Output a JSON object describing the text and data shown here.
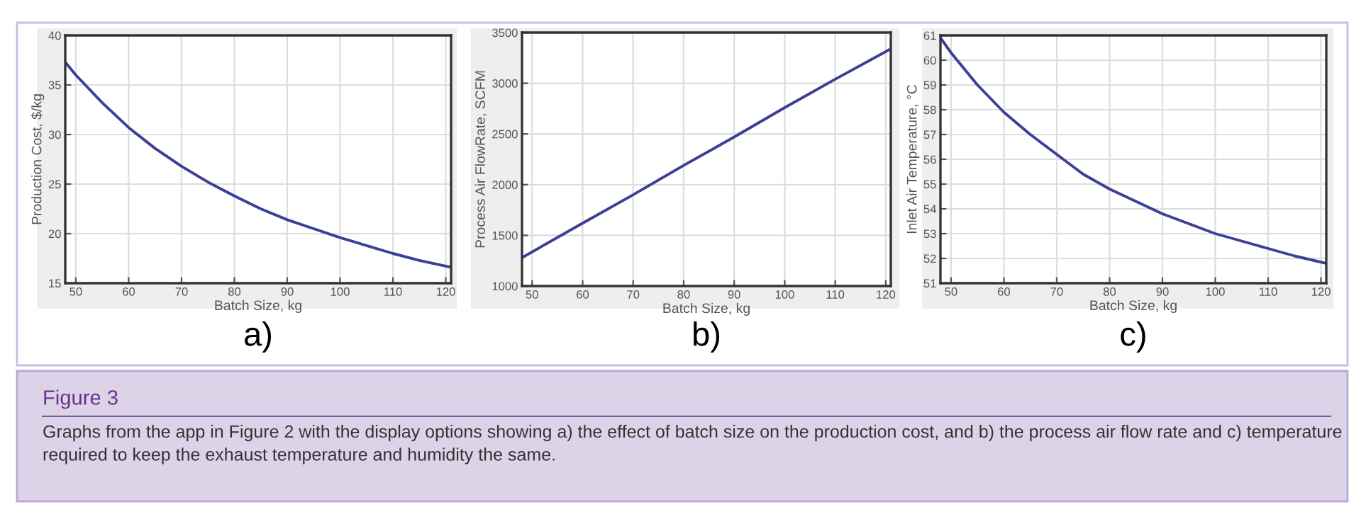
{
  "chart_data": [
    {
      "type": "line",
      "xlabel": "Batch Size, kg",
      "ylabel": "Production Cost, $/kg",
      "xlim": [
        48,
        121
      ],
      "ylim": [
        15,
        40
      ],
      "xticks": [
        50,
        60,
        70,
        80,
        90,
        100,
        110,
        120
      ],
      "yticks": [
        15,
        20,
        25,
        30,
        35,
        40
      ],
      "grid": true,
      "x": [
        48,
        50,
        55,
        60,
        65,
        70,
        75,
        80,
        85,
        90,
        95,
        100,
        105,
        110,
        115,
        121
      ],
      "series": [
        {
          "color": "#3c3f98",
          "values": [
            37.3,
            36.0,
            33.2,
            30.7,
            28.6,
            26.8,
            25.2,
            23.8,
            22.5,
            21.4,
            20.5,
            19.6,
            18.8,
            18.0,
            17.3,
            16.6
          ]
        }
      ],
      "annotations": [
        "a)",
        "Figure 3",
        "Graphs from the app in Figure 2 with the display options showing a) the effect of batch size on the production cost, and b) the process air flow rate and c) temperature required to keep the exhaust temperature and humidity the same."
      ]
    },
    {
      "type": "line",
      "xlabel": "Batch Size, kg",
      "ylabel": "Process Air FlowRate, SCFM",
      "xlim": [
        48,
        121
      ],
      "ylim": [
        1000,
        3500
      ],
      "xticks": [
        50,
        60,
        70,
        80,
        90,
        100,
        110,
        120
      ],
      "yticks": [
        1000,
        1500,
        2000,
        2500,
        3000,
        3500
      ],
      "grid": true,
      "x": [
        48,
        60,
        70,
        80,
        90,
        100,
        110,
        121
      ],
      "series": [
        {
          "color": "#3c3f98",
          "values": [
            1280,
            1620,
            1900,
            2190,
            2470,
            2760,
            3040,
            3340
          ]
        }
      ],
      "annotations": [
        "b)"
      ]
    },
    {
      "type": "line",
      "xlabel": "Batch Size, kg",
      "ylabel": "Inlet Air Temperature, °C",
      "xlim": [
        48,
        121
      ],
      "ylim": [
        51,
        61
      ],
      "xticks": [
        50,
        60,
        70,
        80,
        90,
        100,
        110,
        120
      ],
      "yticks": [
        51,
        52,
        53,
        54,
        55,
        56,
        57,
        58,
        59,
        60,
        61
      ],
      "grid": true,
      "x": [
        48,
        50,
        55,
        60,
        65,
        70,
        75,
        80,
        85,
        90,
        95,
        100,
        105,
        110,
        115,
        121
      ],
      "series": [
        {
          "color": "#3c3f98",
          "values": [
            60.9,
            60.3,
            59.0,
            57.9,
            57.0,
            56.2,
            55.4,
            54.8,
            54.3,
            53.8,
            53.4,
            53.0,
            52.7,
            52.4,
            52.1,
            51.8
          ]
        }
      ],
      "annotations": [
        "c)"
      ]
    }
  ]
}
